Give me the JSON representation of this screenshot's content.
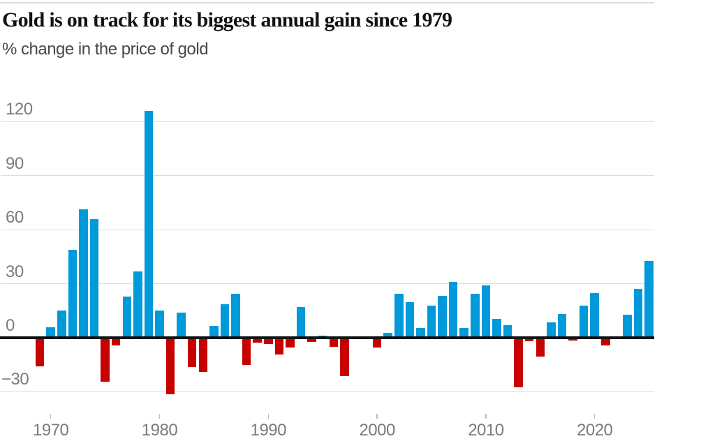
{
  "header": {
    "title": "Gold is on track for its biggest annual gain since 1979",
    "subtitle": "% change in the price of gold"
  },
  "chart_data": {
    "type": "bar",
    "title": "Gold is on track for its biggest annual gain since 1979",
    "subtitle": "% change in the price of gold",
    "unit": "%",
    "categories": [
      1969,
      1970,
      1971,
      1972,
      1973,
      1974,
      1975,
      1976,
      1977,
      1978,
      1979,
      1980,
      1981,
      1982,
      1983,
      1984,
      1985,
      1986,
      1987,
      1988,
      1989,
      1990,
      1991,
      1992,
      1993,
      1994,
      1995,
      1996,
      1997,
      1998,
      1999,
      2000,
      2001,
      2002,
      2003,
      2004,
      2005,
      2006,
      2007,
      2008,
      2009,
      2010,
      2011,
      2012,
      2013,
      2014,
      2015,
      2016,
      2017,
      2018,
      2019,
      2020,
      2021,
      2022,
      2023,
      2024,
      2025
    ],
    "values": [
      -16,
      5.8,
      15,
      48.8,
      71.5,
      66,
      -24.5,
      -4.2,
      22.8,
      37,
      126,
      15,
      -31.5,
      14,
      -16.3,
      -19,
      6.7,
      18.6,
      24.5,
      -15.3,
      -2.8,
      -3.6,
      -9.3,
      -5.6,
      17,
      -2.3,
      1.3,
      -4.9,
      -21.2,
      -0.8,
      0.9,
      -5.3,
      2.7,
      24.3,
      19.7,
      5.5,
      17.9,
      23.1,
      30.9,
      5.5,
      24.6,
      29.2,
      10.4,
      7.1,
      -27.5,
      -2.1,
      -10.3,
      8.6,
      13,
      -1.5,
      17.9,
      24.9,
      -4.1,
      -0.3,
      12.9,
      27.2,
      42.8
    ],
    "colors": {
      "positive_bar": "#0099da",
      "negative_bar": "#c70000",
      "zero_line": "#121212",
      "gridline": "#dcdcdc",
      "axis_label": "#7b7b7b"
    },
    "y_axis": {
      "ticks": [
        120,
        90,
        60,
        30,
        0,
        -30
      ],
      "tick_labels": [
        "120",
        "90",
        "60",
        "30",
        "0",
        "−30"
      ],
      "range_shown": [
        -35,
        130
      ],
      "gridlines": true
    },
    "x_axis": {
      "ticks": [
        1970,
        1980,
        1990,
        2000,
        2010,
        2020
      ],
      "tick_labels": [
        "1970",
        "1980",
        "1990",
        "2000",
        "2010",
        "2020"
      ],
      "range_shown": [
        1969,
        2025
      ]
    },
    "legend": "none"
  }
}
